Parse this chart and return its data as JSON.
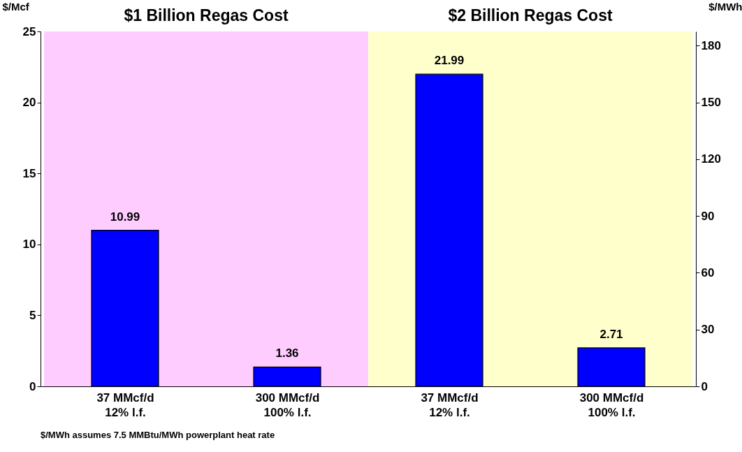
{
  "chart_data": [
    {
      "type": "bar",
      "title": "$1 Billion Regas Cost",
      "categories": [
        "37 MMcf/d\n12% l.f.",
        "300 MMcf/d\n100% l.f."
      ],
      "values": [
        10.99,
        1.36
      ],
      "color": "#0000ff",
      "data_labels": true,
      "ylabel": "$/Mcf",
      "ylim": [
        0,
        25
      ],
      "yticks": [
        0,
        5,
        10,
        15,
        20,
        25
      ],
      "bands": [
        {
          "axis": "x",
          "from": "37 MMcf/d\n12% l.f.",
          "to": "300 MMcf/d\n100% l.f.",
          "color": "#ffccff"
        }
      ],
      "annotations": [
        "$/MWh assumes 7.5 MMBtu/MWh powerplant heat rate"
      ],
      "grid": false
    },
    {
      "type": "bar",
      "title": "$2 Billion Regas Cost",
      "categories": [
        "37 MMcf/d\n12% l.f.",
        "300 MMcf/d\n100% l.f."
      ],
      "values": [
        21.99,
        2.71
      ],
      "color": "#0000ff",
      "data_labels": true,
      "y2label": "$/MWh",
      "ylim": [
        0,
        25
      ],
      "y2lim": [
        0,
        187.5
      ],
      "y2ticks": [
        0,
        30,
        60,
        90,
        120,
        150,
        180
      ],
      "bands": [
        {
          "axis": "x",
          "from": "37 MMcf/d\n12% l.f.",
          "to": "300 MMcf/d\n100% l.f.",
          "color": "#ffffcc"
        }
      ],
      "grid": false
    }
  ]
}
